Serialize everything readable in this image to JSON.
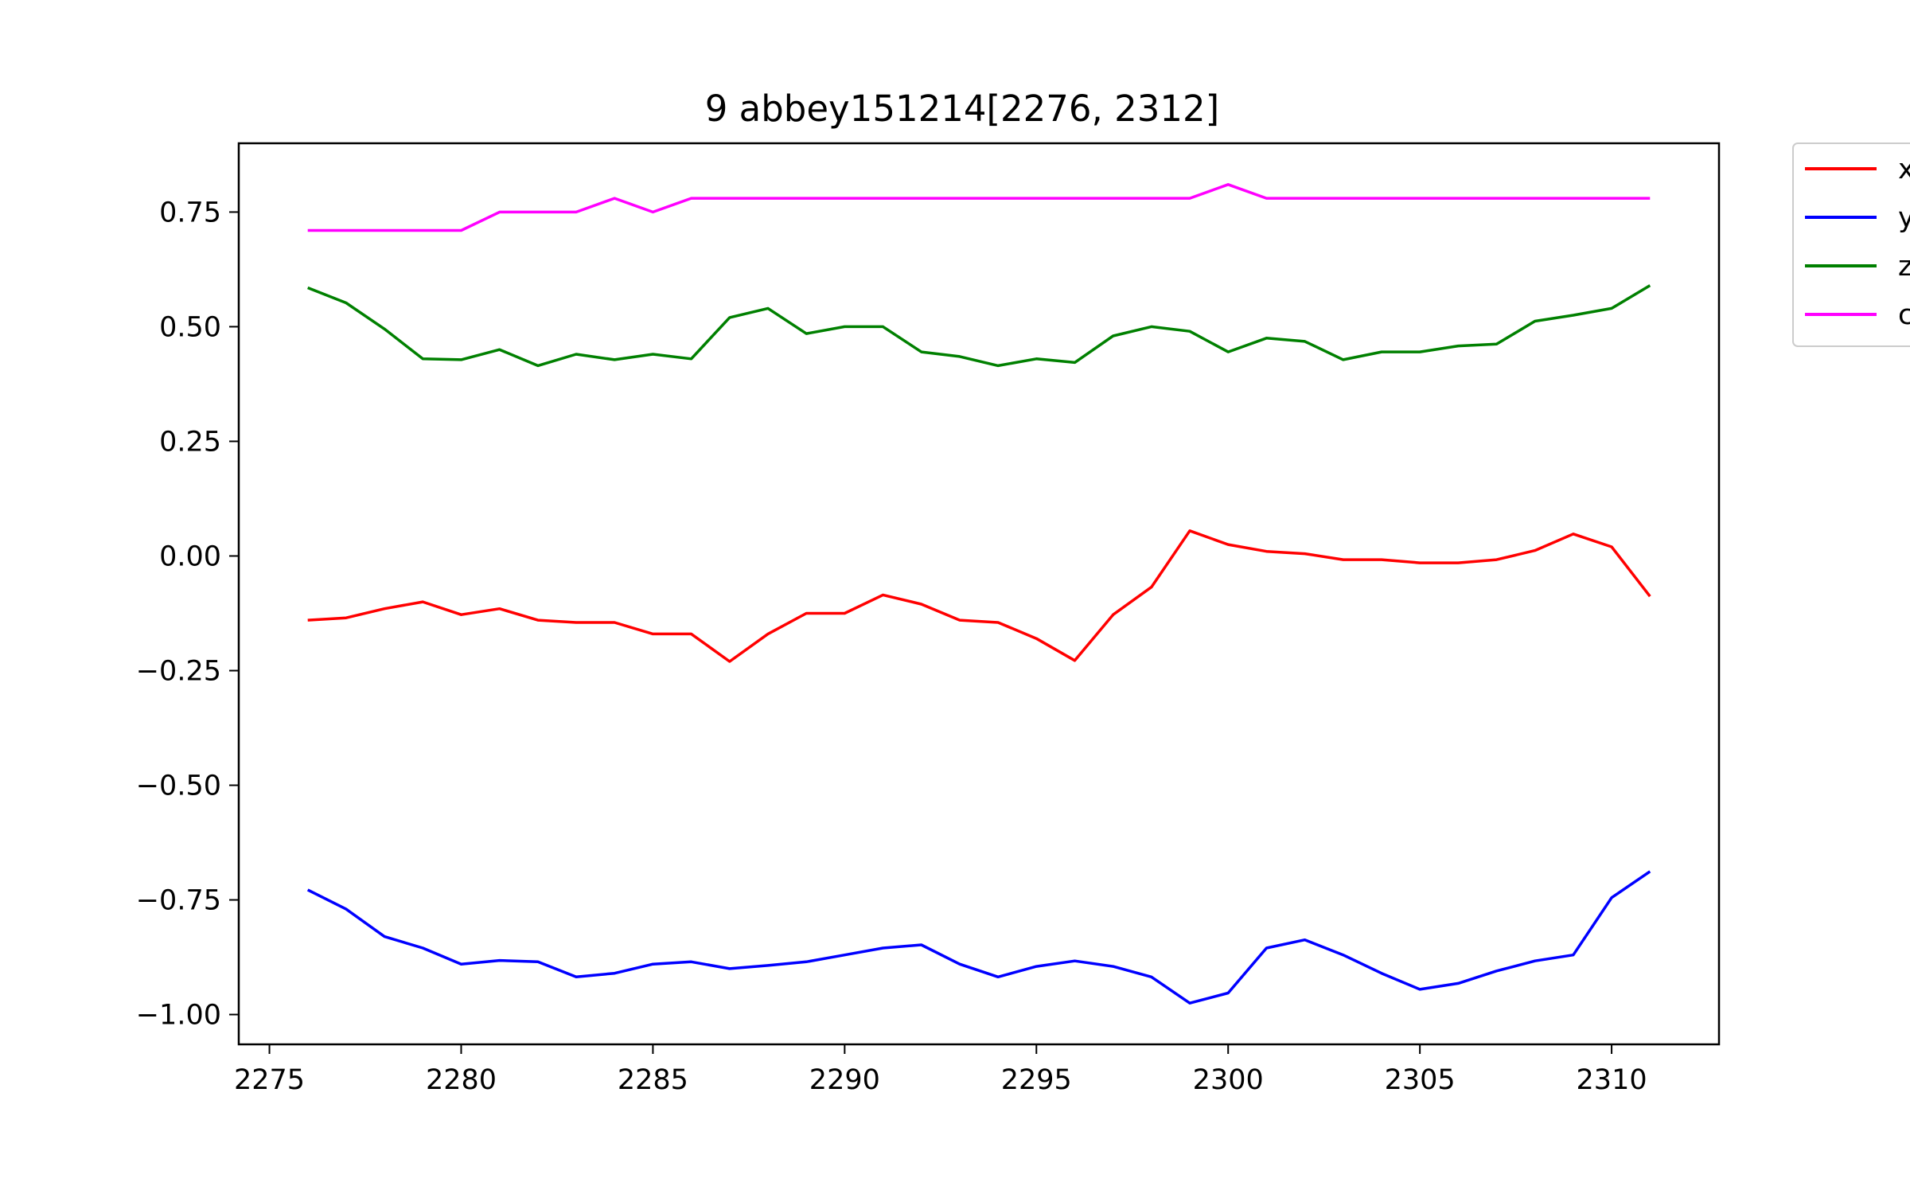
{
  "chart_data": {
    "type": "line",
    "title": "9 abbey151214[2276, 2312]",
    "xlabel": "",
    "ylabel": "",
    "xlim": [
      2274.2,
      2312.8
    ],
    "ylim": [
      -1.065,
      0.9
    ],
    "x_ticks": [
      "2275",
      "2280",
      "2285",
      "2290",
      "2295",
      "2300",
      "2305",
      "2310"
    ],
    "y_ticks": [
      "0.75",
      "0.50",
      "0.25",
      "0.00",
      "−0.25",
      "−0.50",
      "−0.75",
      "−1.00"
    ],
    "grid": false,
    "legend_position": "outside-right",
    "x": [
      2276,
      2277,
      2278,
      2279,
      2280,
      2281,
      2282,
      2283,
      2284,
      2285,
      2286,
      2287,
      2288,
      2289,
      2290,
      2291,
      2292,
      2293,
      2294,
      2295,
      2296,
      2297,
      2298,
      2299,
      2300,
      2301,
      2302,
      2303,
      2304,
      2305,
      2306,
      2307,
      2308,
      2309,
      2310,
      2311
    ],
    "series": [
      {
        "name": "x",
        "color": "#ff0000",
        "values": [
          -0.14,
          -0.135,
          -0.115,
          -0.1,
          -0.128,
          -0.115,
          -0.14,
          -0.145,
          -0.145,
          -0.17,
          -0.17,
          -0.23,
          -0.17,
          -0.125,
          -0.125,
          -0.085,
          -0.105,
          -0.14,
          -0.145,
          -0.18,
          -0.228,
          -0.128,
          -0.068,
          0.055,
          0.025,
          0.01,
          0.005,
          -0.008,
          -0.008,
          -0.015,
          -0.015,
          -0.008,
          0.012,
          0.048,
          0.02,
          -0.088
        ]
      },
      {
        "name": "y",
        "color": "#0000ff",
        "values": [
          -0.728,
          -0.77,
          -0.83,
          -0.855,
          -0.89,
          -0.882,
          -0.885,
          -0.918,
          -0.91,
          -0.89,
          -0.885,
          -0.9,
          -0.893,
          -0.885,
          -0.87,
          -0.855,
          -0.848,
          -0.89,
          -0.918,
          -0.895,
          -0.883,
          -0.895,
          -0.918,
          -0.975,
          -0.953,
          -0.855,
          -0.837,
          -0.87,
          -0.91,
          -0.945,
          -0.932,
          -0.905,
          -0.883,
          -0.87,
          -0.745,
          -0.688
        ]
      },
      {
        "name": "z",
        "color": "#008000",
        "values": [
          0.585,
          0.552,
          0.495,
          0.43,
          0.428,
          0.45,
          0.415,
          0.44,
          0.428,
          0.44,
          0.43,
          0.52,
          0.54,
          0.485,
          0.5,
          0.5,
          0.445,
          0.435,
          0.415,
          0.43,
          0.422,
          0.48,
          0.5,
          0.49,
          0.445,
          0.475,
          0.468,
          0.428,
          0.445,
          0.445,
          0.458,
          0.462,
          0.512,
          0.525,
          0.54,
          0.59
        ]
      },
      {
        "name": "c",
        "color": "#ff00ff",
        "values": [
          0.71,
          0.71,
          0.71,
          0.71,
          0.71,
          0.75,
          0.75,
          0.75,
          0.78,
          0.75,
          0.78,
          0.78,
          0.78,
          0.78,
          0.78,
          0.78,
          0.78,
          0.78,
          0.78,
          0.78,
          0.78,
          0.78,
          0.78,
          0.78,
          0.81,
          0.78,
          0.78,
          0.78,
          0.78,
          0.78,
          0.78,
          0.78,
          0.78,
          0.78,
          0.78,
          0.78
        ]
      }
    ]
  }
}
